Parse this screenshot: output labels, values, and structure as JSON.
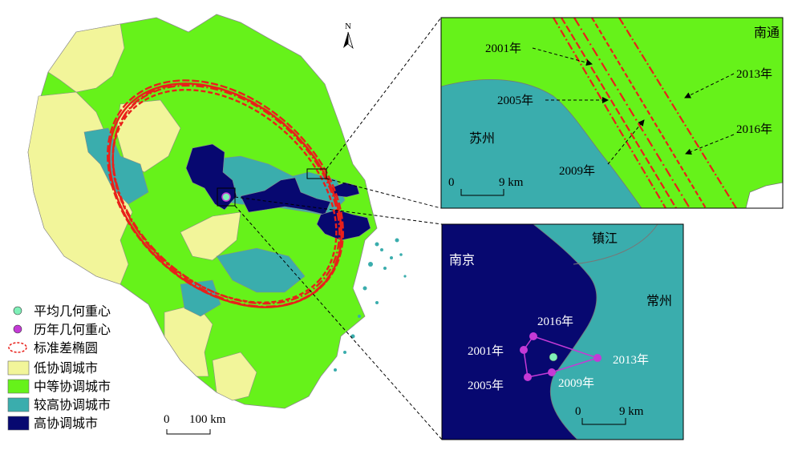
{
  "colors": {
    "low": "#f2f59a",
    "medium": "#66f21a",
    "higher": "#3aadad",
    "high": "#070870",
    "ellipse": "#e8201a",
    "avg_center": "#7ff0b8",
    "yearly_center": "#c43ad6",
    "track_line": "#c43ad6",
    "sea": "#ffffff",
    "border": "#888888"
  },
  "north_arrow": {
    "label": "N"
  },
  "main_scale": {
    "start": "0",
    "end": "100 km"
  },
  "legend": {
    "items": [
      {
        "label": "平均几何重心",
        "symbol": "dot",
        "color": "#7ff0b8"
      },
      {
        "label": "历年几何重心",
        "symbol": "dot",
        "color": "#c43ad6"
      },
      {
        "label": "标准差椭圆",
        "symbol": "ellipse",
        "color": "#e8201a"
      },
      {
        "label": "低协调城市",
        "symbol": "box",
        "color": "#f2f59a"
      },
      {
        "label": "中等协调城市",
        "symbol": "box",
        "color": "#66f21a"
      },
      {
        "label": "较高协调城市",
        "symbol": "box",
        "color": "#3aadad"
      },
      {
        "label": "高协调城市",
        "symbol": "box",
        "color": "#070870"
      }
    ]
  },
  "inset_top": {
    "place_labels": {
      "nantong": "南通",
      "suzhou": "苏州"
    },
    "year_labels": {
      "y2001": "2001年",
      "y2005": "2005年",
      "y2009": "2009年",
      "y2013": "2013年",
      "y2016": "2016年"
    },
    "scale": {
      "start": "0",
      "end": "9 km"
    }
  },
  "inset_bottom": {
    "place_labels": {
      "nanjing": "南京",
      "zhenjiang": "镇江",
      "changzhou": "常州"
    },
    "year_labels": {
      "y2001": "2001年",
      "y2005": "2005年",
      "y2009": "2009年",
      "y2013": "2013年",
      "y2016": "2016年"
    },
    "scale": {
      "start": "0",
      "end": "9 km"
    }
  }
}
